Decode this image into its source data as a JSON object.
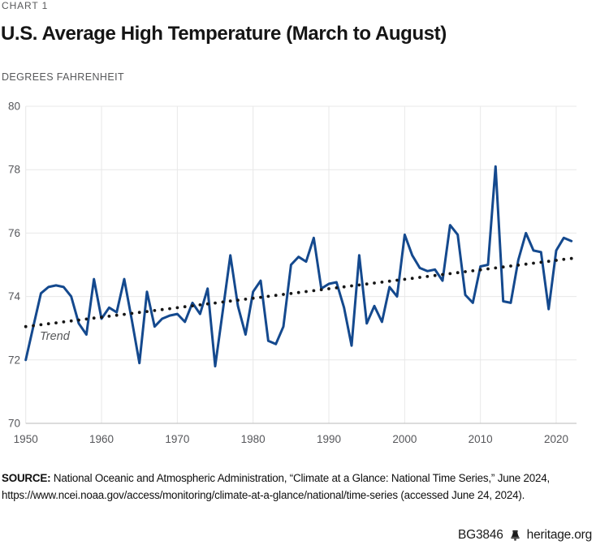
{
  "header": {
    "kicker": "CHART 1",
    "title": "U.S. Average High Temperature (March to August)",
    "units_label": "DEGREES FAHRENHEIT"
  },
  "chart_data": {
    "type": "line",
    "title": "U.S. Average High Temperature (March to August)",
    "ylabel": "Degrees Fahrenheit",
    "ylim": [
      70,
      80
    ],
    "yticks": [
      70,
      72,
      74,
      76,
      78,
      80
    ],
    "xticks": [
      1950,
      1960,
      1970,
      1980,
      1990,
      2000,
      2010,
      2020
    ],
    "x_start": 1950,
    "x_step": 1,
    "grid": true,
    "line_color": "#14498e",
    "trend_dot_color": "#161616",
    "series": [
      {
        "name": "U.S. average high temperature (March to August), degrees Fahrenheit",
        "values": [
          72.0,
          73.05,
          74.1,
          74.3,
          74.35,
          74.3,
          74.0,
          73.15,
          72.8,
          74.55,
          73.3,
          73.65,
          73.5,
          74.55,
          73.25,
          71.9,
          74.15,
          73.05,
          73.3,
          73.4,
          73.45,
          73.2,
          73.8,
          73.45,
          74.25,
          71.8,
          73.55,
          75.3,
          73.7,
          72.8,
          74.15,
          74.5,
          72.6,
          72.5,
          73.05,
          75.0,
          75.25,
          75.1,
          75.85,
          74.25,
          74.4,
          74.45,
          73.65,
          72.45,
          75.3,
          73.15,
          73.7,
          73.2,
          74.3,
          74.0,
          75.95,
          75.3,
          74.9,
          74.8,
          74.85,
          74.5,
          76.25,
          75.95,
          74.05,
          73.8,
          74.95,
          75.0,
          78.1,
          73.85,
          73.8,
          75.15,
          76.0,
          75.45,
          75.4,
          73.6,
          75.45,
          75.85,
          75.75
        ]
      }
    ],
    "trend": {
      "label": "Trend",
      "style": "dotted",
      "start": {
        "year": 1950,
        "value": 73.05
      },
      "end": {
        "year": 2022,
        "value": 75.2
      }
    }
  },
  "source": {
    "label": "SOURCE:",
    "text": " National Oceanic and Atmospheric Administration, “Climate at a Glance: National Time Series,” June 2024, https://www.ncei.noaa.gov/access/monitoring/climate-at-a-glance/national/time-series (accessed June 24, 2024)."
  },
  "footer": {
    "report_id": "BG3846",
    "site": "heritage.org"
  }
}
